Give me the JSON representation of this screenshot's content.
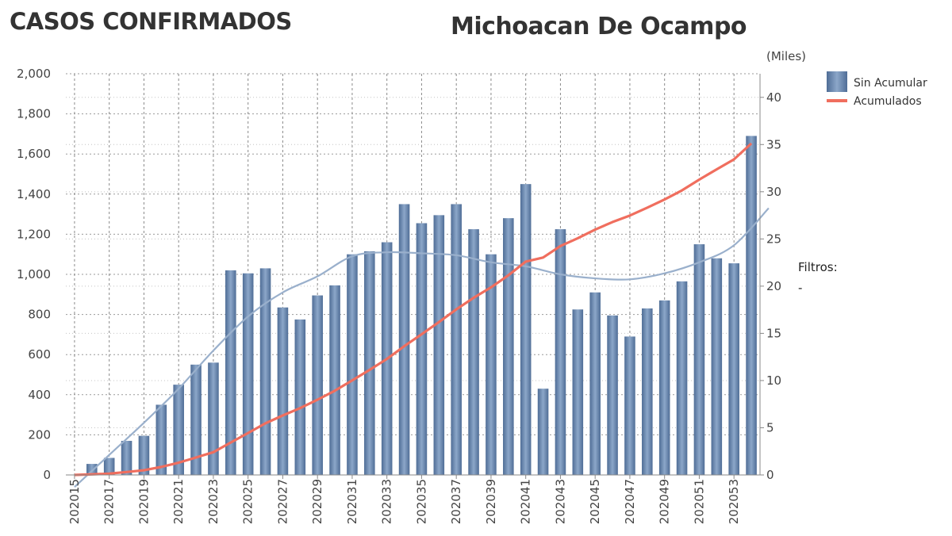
{
  "header": {
    "title": "CASOS CONFIRMADOS",
    "region": "Michoacan De Ocampo"
  },
  "filters": {
    "label": "Filtros:",
    "value": "-"
  },
  "chart_data": {
    "type": "bar",
    "categories": [
      "202015",
      "202016",
      "202017",
      "202018",
      "202019",
      "202020",
      "202021",
      "202022",
      "202023",
      "202024",
      "202025",
      "202026",
      "202027",
      "202028",
      "202029",
      "202030",
      "202031",
      "202032",
      "202033",
      "202034",
      "202035",
      "202036",
      "202037",
      "202038",
      "202039",
      "202040",
      "202041",
      "202042",
      "202043",
      "202044",
      "202045",
      "202046",
      "202047",
      "202048",
      "202049",
      "202050",
      "202051",
      "202052",
      "202053",
      "202054"
    ],
    "x_tick_labels": [
      "202015",
      "202017",
      "202019",
      "202021",
      "202023",
      "202025",
      "202027",
      "202029",
      "202031",
      "202033",
      "202035",
      "202037",
      "202039",
      "202041",
      "202043",
      "202045",
      "202047",
      "202049",
      "202051",
      "202053"
    ],
    "series": [
      {
        "name": "Sin Acumular",
        "axis": "left",
        "color": "#6a8ab3",
        "values": [
          0,
          55,
          85,
          170,
          195,
          350,
          450,
          550,
          560,
          1020,
          1005,
          1030,
          835,
          775,
          895,
          945,
          1100,
          1115,
          1160,
          1350,
          1255,
          1295,
          1350,
          1225,
          1100,
          1280,
          1450,
          430,
          1225,
          825,
          910,
          795,
          690,
          830,
          870,
          965,
          1150,
          1080,
          1055,
          1690
        ]
      },
      {
        "name": "Acumulados",
        "axis": "right",
        "color": "#f06e5e",
        "values": [
          0,
          0.06,
          0.14,
          0.31,
          0.5,
          0.85,
          1.3,
          1.85,
          2.41,
          3.43,
          4.44,
          5.47,
          6.3,
          7.08,
          7.97,
          8.92,
          10.02,
          11.13,
          12.29,
          13.64,
          14.9,
          16.19,
          17.54,
          18.77,
          19.87,
          21.15,
          22.6,
          23.03,
          24.25,
          25.08,
          25.99,
          26.79,
          27.48,
          28.31,
          29.18,
          30.14,
          31.29,
          32.37,
          33.43,
          35.12
        ]
      },
      {
        "name": "trend",
        "axis": "left",
        "color": "#9ab0cc",
        "x": [
          202015,
          202017,
          202019,
          202021,
          202023,
          202025,
          202027,
          202029,
          202031,
          202033,
          202035,
          202037,
          202039,
          202041,
          202043,
          202045,
          202047,
          202049,
          202051,
          202053,
          202055
        ],
        "values": [
          -60,
          100,
          260,
          430,
          620,
          790,
          910,
          990,
          1090,
          1110,
          1105,
          1095,
          1060,
          1040,
          1000,
          980,
          975,
          1005,
          1060,
          1145,
          1330
        ]
      }
    ],
    "ylim_left": [
      0,
      2000
    ],
    "yticks_left": [
      "2,000",
      "1,800",
      "1,600",
      "1,400",
      "1,200",
      "1,000",
      "800",
      "600",
      "400",
      "200",
      "0"
    ],
    "ylim_right": [
      0,
      42.5
    ],
    "yticks_right": [
      "40",
      "35",
      "30",
      "25",
      "20",
      "15",
      "10",
      "5",
      "0"
    ],
    "ylabel_right": "(Miles)",
    "grid": true,
    "legend": "top-right",
    "legend_entries": [
      "Sin Acumular",
      "Acumulados"
    ]
  }
}
